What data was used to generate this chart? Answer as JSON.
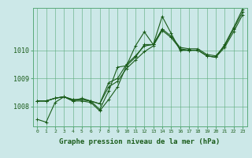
{
  "title": "Graphe pression niveau de la mer (hPa)",
  "bg_color": "#cce8e8",
  "grid_color": "#5aaa7a",
  "line_color": "#1a5c1a",
  "xlim": [
    -0.5,
    23.5
  ],
  "ylim": [
    1007.3,
    1011.5
  ],
  "yticks": [
    1008,
    1009,
    1010
  ],
  "ytick_labels": [
    "1008",
    "1009",
    "1010"
  ],
  "xticks": [
    0,
    1,
    2,
    3,
    4,
    5,
    6,
    7,
    8,
    9,
    10,
    11,
    12,
    13,
    14,
    15,
    16,
    17,
    18,
    19,
    20,
    21,
    22,
    23
  ],
  "series": [
    [
      1007.55,
      1007.45,
      1008.15,
      1008.35,
      1008.2,
      1008.2,
      1008.15,
      1007.85,
      1008.25,
      1008.7,
      1009.45,
      1009.75,
      1010.2,
      1010.2,
      1011.2,
      1010.6,
      1010.0,
      1010.0,
      1010.0,
      1009.8,
      1009.75,
      1010.2,
      1010.8,
      1011.45
    ],
    [
      1008.2,
      1008.2,
      1008.3,
      1008.35,
      1008.2,
      1008.3,
      1008.2,
      1007.9,
      1008.55,
      1009.4,
      1009.45,
      1010.15,
      1010.65,
      1010.2,
      1010.75,
      null,
      null,
      null,
      null,
      null,
      null,
      null,
      null,
      null
    ],
    [
      1008.2,
      1008.2,
      1008.3,
      1008.35,
      1008.25,
      1008.25,
      1008.2,
      1008.1,
      1008.85,
      1009.0,
      1009.5,
      1009.8,
      1010.15,
      1010.2,
      1010.75,
      1010.5,
      1010.1,
      1010.05,
      1010.05,
      1009.85,
      1009.8,
      1010.15,
      1010.75,
      1011.35
    ],
    [
      1008.2,
      1008.2,
      1008.3,
      1008.35,
      1008.25,
      1008.25,
      1008.2,
      1008.1,
      1008.7,
      1008.9,
      1009.35,
      1009.65,
      1009.95,
      1010.15,
      1010.7,
      1010.45,
      1010.05,
      1010.0,
      1010.0,
      1009.8,
      1009.75,
      1010.1,
      1010.65,
      1011.25
    ]
  ],
  "title_fontsize": 6.5,
  "ytick_fontsize": 6,
  "xtick_fontsize": 4.5
}
